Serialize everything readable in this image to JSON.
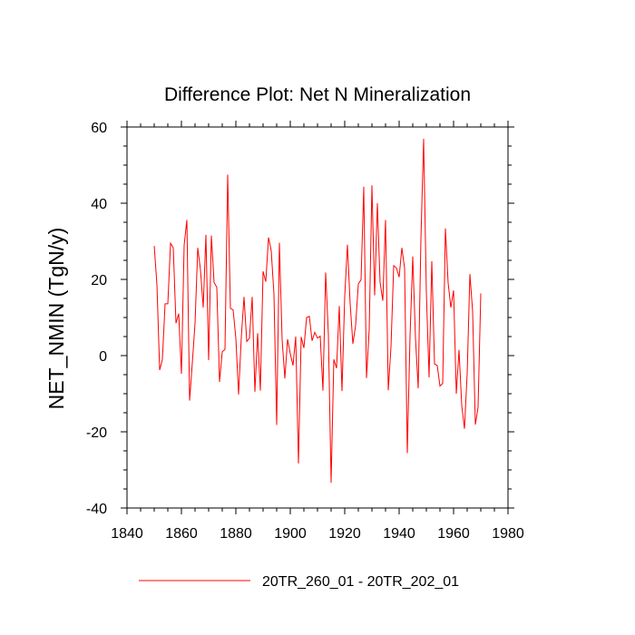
{
  "chart_data": {
    "type": "line",
    "title": "Difference Plot: Net N Mineralization",
    "xlabel": "",
    "ylabel": "NET_NMIN  (TgN/y)",
    "xlim": [
      1840,
      1980
    ],
    "ylim": [
      -40,
      60
    ],
    "xticks": [
      "1840",
      "1860",
      "1880",
      "1900",
      "1920",
      "1940",
      "1960",
      "1980"
    ],
    "yticks": [
      "60",
      "40",
      "20",
      "0",
      "-20",
      "-40"
    ],
    "grid": false,
    "legend_position": "bottom",
    "series": [
      {
        "name": "20TR_260_01 - 20TR_202_01",
        "color": "#ff0000",
        "x": [
          1850,
          1851,
          1852,
          1853,
          1854,
          1855,
          1856,
          1857,
          1858,
          1859,
          1860,
          1861,
          1862,
          1863,
          1864,
          1865,
          1866,
          1867,
          1868,
          1869,
          1870,
          1871,
          1872,
          1873,
          1874,
          1875,
          1876,
          1877,
          1878,
          1879,
          1880,
          1881,
          1882,
          1883,
          1884,
          1885,
          1886,
          1887,
          1888,
          1889,
          1890,
          1891,
          1892,
          1893,
          1894,
          1895,
          1896,
          1897,
          1898,
          1899,
          1900,
          1901,
          1902,
          1903,
          1904,
          1905,
          1906,
          1907,
          1908,
          1909,
          1910,
          1911,
          1912,
          1913,
          1914,
          1915,
          1916,
          1917,
          1918,
          1919,
          1920,
          1921,
          1922,
          1923,
          1924,
          1925,
          1926,
          1927,
          1928,
          1929,
          1930,
          1931,
          1932,
          1933,
          1934,
          1935,
          1936,
          1937,
          1938,
          1939,
          1940,
          1941,
          1942,
          1943,
          1944,
          1945,
          1946,
          1947,
          1948,
          1949,
          1950,
          1951,
          1952,
          1953,
          1954,
          1955,
          1956,
          1957,
          1958,
          1959,
          1960,
          1961,
          1962,
          1963,
          1964,
          1965,
          1966,
          1967,
          1968,
          1969,
          1970
        ],
        "values": [
          28.8,
          18.6,
          -3.8,
          -1.0,
          13.6,
          13.6,
          29.5,
          28.3,
          8.5,
          11.0,
          -4.8,
          29.0,
          35.6,
          -11.8,
          -2.0,
          8.5,
          28.3,
          22.5,
          12.6,
          31.7,
          -1.2,
          31.5,
          19.2,
          17.9,
          -6.9,
          1.0,
          1.6,
          47.5,
          12.4,
          12.0,
          4.5,
          -10.2,
          4.8,
          15.4,
          3.7,
          4.6,
          15.4,
          -9.5,
          5.9,
          -9.2,
          22.1,
          19.4,
          31.0,
          27.5,
          16.1,
          -18.2,
          29.6,
          4.2,
          -6.0,
          4.3,
          0.5,
          -2.6,
          5.0,
          -28.3,
          4.9,
          2.0,
          10.0,
          10.3,
          3.9,
          6.1,
          4.6,
          5.1,
          -9.2,
          21.8,
          5.5,
          -33.4,
          -1.0,
          -3.3,
          13.0,
          -9.3,
          15.6,
          29.1,
          13.6,
          3.1,
          7.9,
          18.8,
          19.9,
          44.3,
          -5.9,
          6.8,
          44.7,
          15.8,
          40.0,
          19.2,
          14.4,
          35.6,
          -9.1,
          2.3,
          23.6,
          23.0,
          20.6,
          28.3,
          22.9,
          -25.6,
          5.1,
          26.0,
          4.7,
          -8.6,
          30.6,
          56.9,
          16.6,
          -5.7,
          24.8,
          -2.2,
          -2.6,
          -8.0,
          -7.3,
          33.4,
          19.1,
          12.6,
          17.1,
          -10.0,
          1.5,
          -13.1,
          -19.2,
          -4.7,
          21.4,
          11.6,
          -18.1,
          -13.6,
          16.3
        ]
      }
    ]
  }
}
